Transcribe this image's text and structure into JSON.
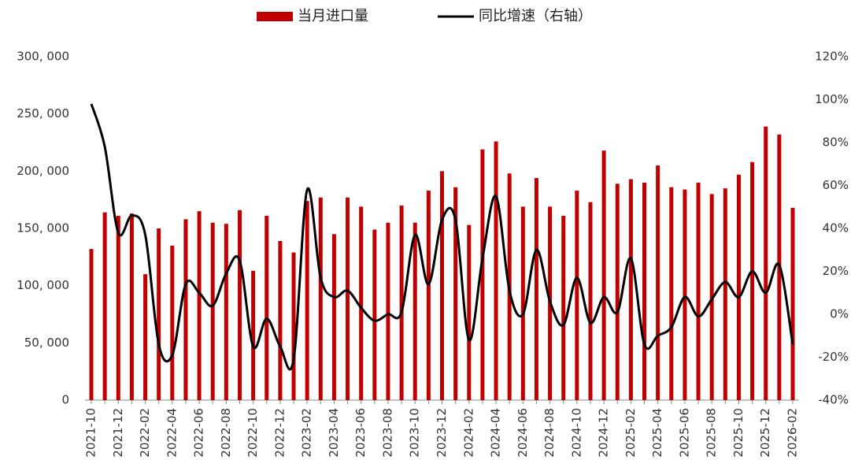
{
  "chart_data": {
    "type": "bar-line",
    "categories": [
      "2021-10",
      null,
      "2021-12",
      null,
      "2022-02",
      null,
      "2022-04",
      null,
      "2022-06",
      null,
      "2022-08",
      null,
      "2022-10",
      null,
      "2022-12",
      null,
      "2023-02",
      null,
      "2023-04",
      null,
      "2023-06",
      null,
      "2023-08",
      null,
      "2023-10",
      null,
      "2023-12",
      null,
      "2024-02",
      null,
      "2024-04",
      null,
      "2024-06",
      null,
      "2024-08",
      null,
      "2024-10",
      null,
      "2024-12",
      null,
      "2025-02",
      null,
      "2025-04",
      null,
      "2025-06",
      null,
      "2025-08",
      null,
      "2025-10",
      null,
      "2025-12",
      null,
      "2026-02"
    ],
    "series": [
      {
        "name": "当月进口量",
        "color": "#c00000",
        "type": "bar",
        "values": [
          132000,
          164000,
          161000,
          163000,
          110000,
          150000,
          135000,
          158000,
          165000,
          155000,
          154000,
          166000,
          113000,
          161000,
          139000,
          129000,
          174000,
          177000,
          145000,
          177000,
          169000,
          149000,
          155000,
          170000,
          155000,
          183000,
          200000,
          186000,
          153000,
          219000,
          226000,
          198000,
          169000,
          194000,
          169000,
          161000,
          183000,
          173000,
          218000,
          189000,
          193000,
          190000,
          205000,
          186000,
          184000,
          190000,
          180000,
          185000,
          197000,
          208000,
          239000,
          232000,
          168000
        ]
      },
      {
        "name": "同比增速（右轴）",
        "color": "#000000",
        "type": "line",
        "axis": "y2",
        "values": [
          98,
          78,
          38,
          46,
          37,
          -14,
          -19,
          14,
          10,
          4,
          19,
          25,
          -15,
          -2,
          -15,
          -21,
          58,
          17,
          8,
          11,
          3,
          -3,
          0,
          1,
          37,
          14,
          44,
          44,
          -12,
          26,
          55,
          11,
          0,
          30,
          6,
          -5,
          17,
          -4,
          8,
          1,
          26,
          -14,
          -10,
          -6,
          8,
          -1,
          7,
          15,
          8,
          20,
          10,
          23,
          -14
        ]
      }
    ],
    "ylim": [
      0,
      300000
    ],
    "yticks": [
      0,
      {
        "value": 50000,
        "label": "50, 000"
      },
      {
        "value": 100000,
        "label": "100, 000"
      },
      {
        "value": 150000,
        "label": "150, 000"
      },
      {
        "value": 200000,
        "label": "200, 000"
      },
      {
        "value": 250000,
        "label": "250, 000"
      },
      {
        "value": 300000,
        "label": "300, 000"
      }
    ],
    "y2lim": [
      -40,
      120
    ],
    "y2ticks": [
      {
        "value": -40,
        "label": "-40%"
      },
      {
        "value": -20,
        "label": "-20%"
      },
      {
        "value": 0,
        "label": "0%"
      },
      {
        "value": 20,
        "label": "20%"
      },
      {
        "value": 40,
        "label": "40%"
      },
      {
        "value": 60,
        "label": "60%"
      },
      {
        "value": 80,
        "label": "80%"
      },
      {
        "value": 100,
        "label": "100%"
      },
      {
        "value": 120,
        "label": "120%"
      }
    ],
    "legend": "top"
  }
}
